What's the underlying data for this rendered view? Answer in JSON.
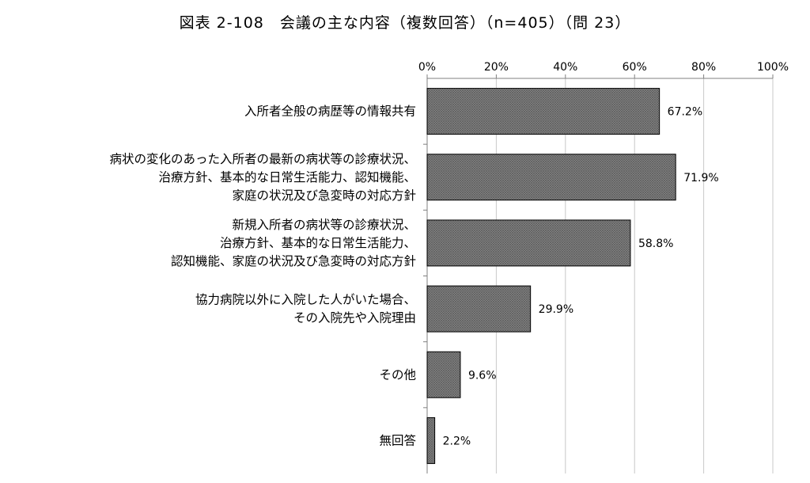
{
  "chart_data": {
    "type": "bar",
    "orientation": "horizontal",
    "title": "図表 2-108　会議の主な内容（複数回答）（n=405）（問 23）",
    "xlabel": "",
    "ylabel": "",
    "xlim": [
      0,
      100
    ],
    "x_ticks": [
      "0%",
      "20%",
      "40%",
      "60%",
      "80%",
      "100%"
    ],
    "grid": "vertical",
    "legend": "none",
    "bar_fill": "crosshatch-gray",
    "colors": {
      "bar": "#7f7f7f",
      "bar_border": "#000000",
      "grid": "#c8c8c8",
      "axis": "#808080"
    },
    "categories": [
      [
        "入所者全般の病歴等の情報共有"
      ],
      [
        "病状の変化のあった入所者の最新の病状等の診療状況、",
        "治療方針、基本的な日常生活能力、認知機能、",
        "家庭の状況及び急変時の対応方針"
      ],
      [
        "新規入所者の病状等の診療状況、",
        "治療方針、基本的な日常生活能力、",
        "認知機能、家庭の状況及び急変時の対応方針"
      ],
      [
        "協力病院以外に入院した人がいた場合、",
        "その入院先や入院理由"
      ],
      [
        "その他"
      ],
      [
        "無回答"
      ]
    ],
    "values": [
      67.2,
      71.9,
      58.8,
      29.9,
      9.6,
      2.2
    ],
    "value_labels": [
      "67.2%",
      "71.9%",
      "58.8%",
      "29.9%",
      "9.6%",
      "2.2%"
    ]
  }
}
